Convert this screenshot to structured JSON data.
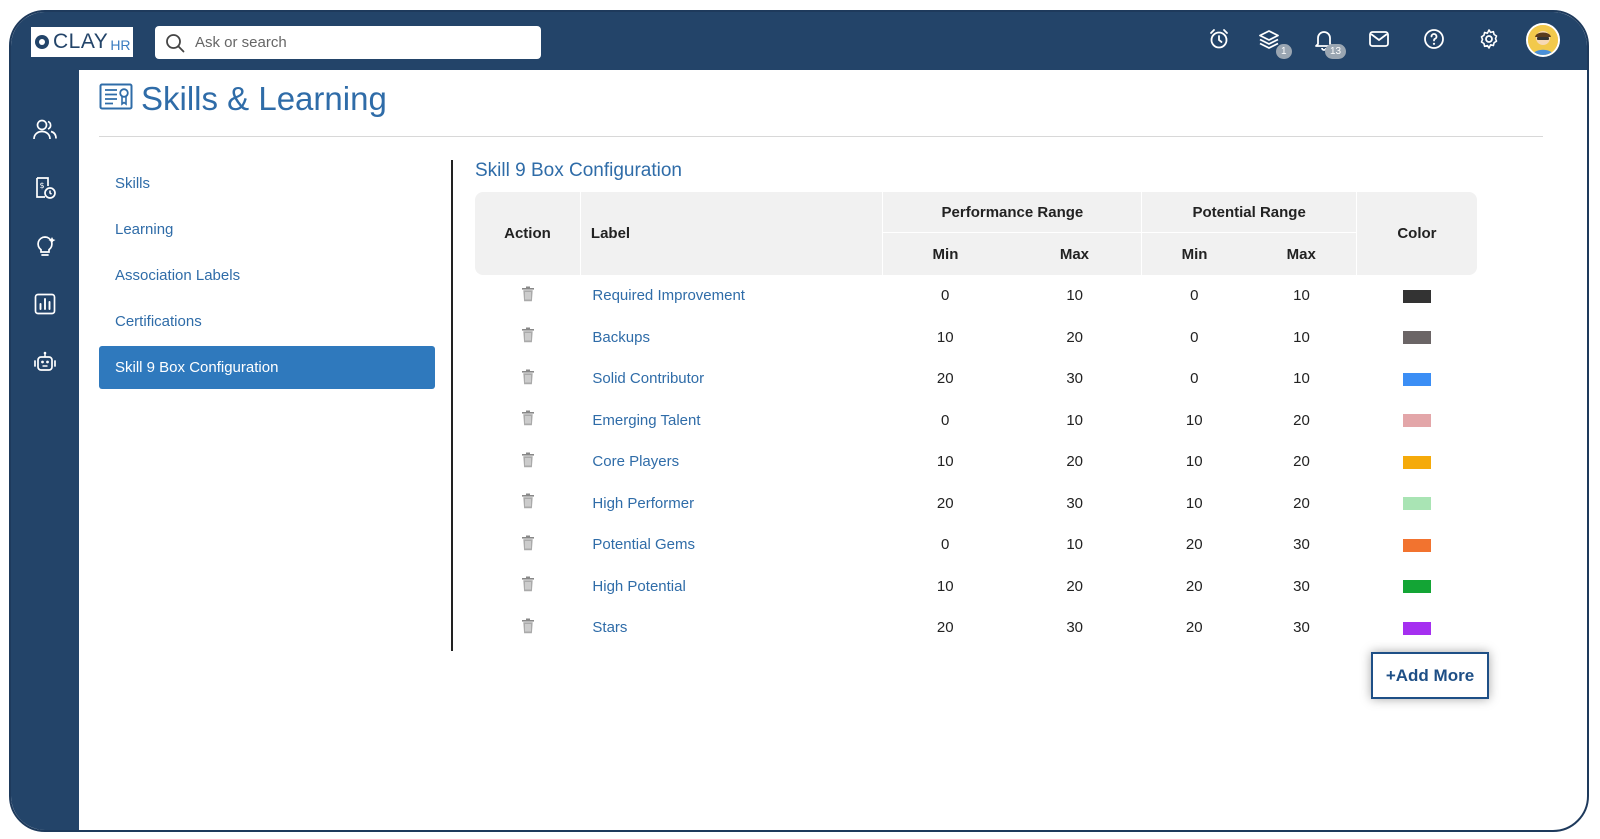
{
  "app": {
    "logo_text": "CLAY",
    "logo_suffix": "HR",
    "search_placeholder": "Ask or search"
  },
  "topbar": {
    "icons": [
      {
        "name": "alarm-clock-icon"
      },
      {
        "name": "layers-icon",
        "badge": "1"
      },
      {
        "name": "bell-icon",
        "badge": "13"
      },
      {
        "name": "mail-icon"
      },
      {
        "name": "help-icon"
      },
      {
        "name": "settings-gear-icon"
      },
      {
        "name": "user-avatar"
      }
    ]
  },
  "sidebar": {
    "icons": [
      "people-icon",
      "payroll-document-icon",
      "lightbulb-icon",
      "chart-report-icon",
      "robot-icon"
    ]
  },
  "page": {
    "title": "Skills & Learning",
    "title_icon": "certificate-icon"
  },
  "nav": {
    "items": [
      {
        "label": "Skills",
        "active": false
      },
      {
        "label": "Learning",
        "active": false
      },
      {
        "label": "Association Labels",
        "active": false
      },
      {
        "label": "Certifications",
        "active": false
      },
      {
        "label": "Skill 9 Box Configuration",
        "active": true
      }
    ]
  },
  "section": {
    "title": "Skill 9 Box Configuration"
  },
  "table": {
    "headers": {
      "action": "Action",
      "label": "Label",
      "performance": "Performance Range",
      "potential": "Potential Range",
      "min": "Min",
      "max": "Max",
      "color": "Color"
    },
    "rows": [
      {
        "label": "Required Improvement",
        "perf_min": "0",
        "perf_max": "10",
        "pot_min": "0",
        "pot_max": "10",
        "color": "#333333"
      },
      {
        "label": "Backups",
        "perf_min": "10",
        "perf_max": "20",
        "pot_min": "0",
        "pot_max": "10",
        "color": "#6b6566"
      },
      {
        "label": "Solid Contributor",
        "perf_min": "20",
        "perf_max": "30",
        "pot_min": "0",
        "pot_max": "10",
        "color": "#3b8ef5"
      },
      {
        "label": "Emerging Talent",
        "perf_min": "0",
        "perf_max": "10",
        "pot_min": "10",
        "pot_max": "20",
        "color": "#e3a6a9"
      },
      {
        "label": "Core Players",
        "perf_min": "10",
        "perf_max": "20",
        "pot_min": "10",
        "pot_max": "20",
        "color": "#f5aa0a"
      },
      {
        "label": "High Performer",
        "perf_min": "20",
        "perf_max": "30",
        "pot_min": "10",
        "pot_max": "20",
        "color": "#a9e4b4"
      },
      {
        "label": "Potential Gems",
        "perf_min": "0",
        "perf_max": "10",
        "pot_min": "20",
        "pot_max": "30",
        "color": "#f2732f"
      },
      {
        "label": "High Potential",
        "perf_min": "10",
        "perf_max": "20",
        "pot_min": "20",
        "pot_max": "30",
        "color": "#13a535"
      },
      {
        "label": "Stars",
        "perf_min": "20",
        "perf_max": "30",
        "pot_min": "20",
        "pot_max": "30",
        "color": "#a52ff0"
      }
    ]
  },
  "actions": {
    "add_more": "+Add More"
  }
}
